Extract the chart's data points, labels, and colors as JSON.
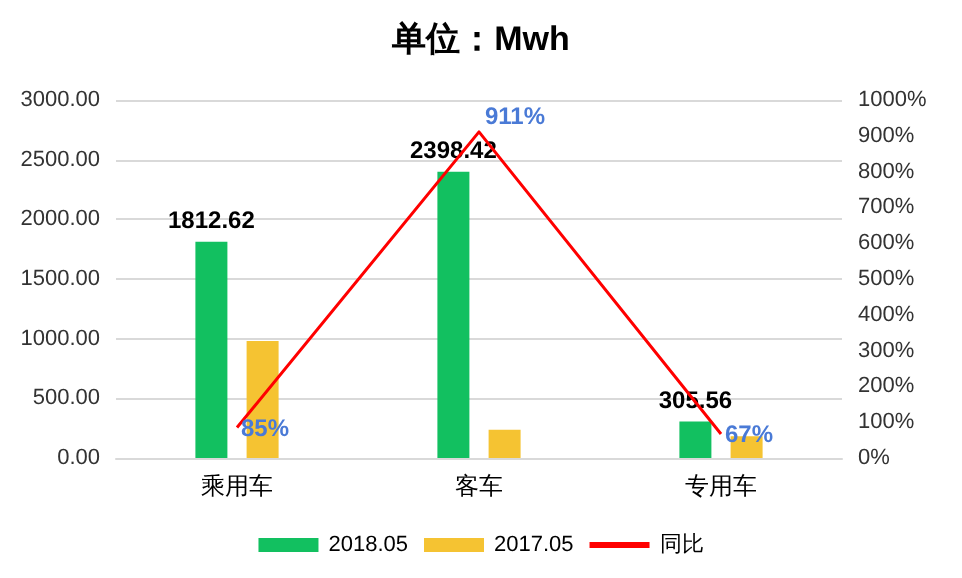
{
  "chart_data": {
    "type": "bar",
    "title": "单位：Mwh",
    "categories": [
      "乘用车",
      "客车",
      "专用车"
    ],
    "series": [
      {
        "name": "2018.05",
        "color": "#12c060",
        "values": [
          1812.62,
          2398.42,
          305.56
        ],
        "value_labels": [
          "1812.62",
          "2398.42",
          "305.56"
        ]
      },
      {
        "name": "2017.05",
        "color": "#f5c332",
        "values": [
          980,
          237,
          183
        ]
      },
      {
        "name": "同比",
        "type": "line",
        "axis": "y2",
        "color": "#ff0000",
        "values": [
          85,
          911,
          67
        ],
        "value_labels": [
          "85%",
          "911%",
          "67%"
        ]
      }
    ],
    "ylim": [
      0,
      3000
    ],
    "yticks": [
      {
        "value": 0,
        "label": "0.00"
      },
      {
        "value": 500,
        "label": "500.00"
      },
      {
        "value": 1000,
        "label": "1000.00"
      },
      {
        "value": 1500,
        "label": "1500.00"
      },
      {
        "value": 2000,
        "label": "2000.00"
      },
      {
        "value": 2500,
        "label": "2500.00"
      },
      {
        "value": 3000,
        "label": "3000.00"
      }
    ],
    "y2lim": [
      0,
      1000
    ],
    "y2ticks": [
      {
        "value": 0,
        "label": "0%"
      },
      {
        "value": 100,
        "label": "100%"
      },
      {
        "value": 200,
        "label": "200%"
      },
      {
        "value": 300,
        "label": "300%"
      },
      {
        "value": 400,
        "label": "400%"
      },
      {
        "value": 500,
        "label": "500%"
      },
      {
        "value": 600,
        "label": "600%"
      },
      {
        "value": 700,
        "label": "700%"
      },
      {
        "value": 800,
        "label": "800%"
      },
      {
        "value": 900,
        "label": "900%"
      },
      {
        "value": 1000,
        "label": "1000%"
      }
    ],
    "grid": "y",
    "legend": "bottom",
    "marker": "none"
  }
}
